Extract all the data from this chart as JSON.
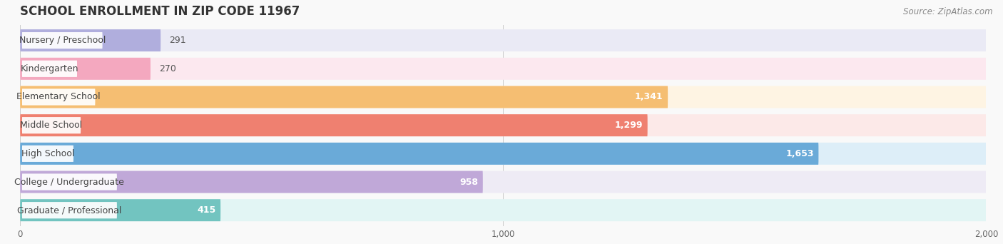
{
  "title": "SCHOOL ENROLLMENT IN ZIP CODE 11967",
  "source": "Source: ZipAtlas.com",
  "categories": [
    "Nursery / Preschool",
    "Kindergarten",
    "Elementary School",
    "Middle School",
    "High School",
    "College / Undergraduate",
    "Graduate / Professional"
  ],
  "values": [
    291,
    270,
    1341,
    1299,
    1653,
    958,
    415
  ],
  "bar_colors": [
    "#b0aedd",
    "#f4a8bf",
    "#f5be72",
    "#ef8070",
    "#6aaad8",
    "#c0a8d8",
    "#72c4c0"
  ],
  "bar_bg_colors": [
    "#eaeaf5",
    "#fce8ef",
    "#fef4e3",
    "#fce9e8",
    "#ddeef8",
    "#eeebf5",
    "#e2f5f4"
  ],
  "value_inside_colors": [
    "#555555",
    "#555555",
    "#ffffff",
    "#ffffff",
    "#ffffff",
    "#555555",
    "#555555"
  ],
  "value_thresholds": [
    400,
    400,
    400,
    400,
    400,
    400,
    400
  ],
  "xlim_max": 2000,
  "xticks": [
    0,
    1000,
    2000
  ],
  "title_fontsize": 12,
  "label_fontsize": 9,
  "value_fontsize": 9,
  "source_fontsize": 8.5,
  "background_color": "#f9f9f9",
  "bar_height": 0.78,
  "bar_gap": 0.22
}
